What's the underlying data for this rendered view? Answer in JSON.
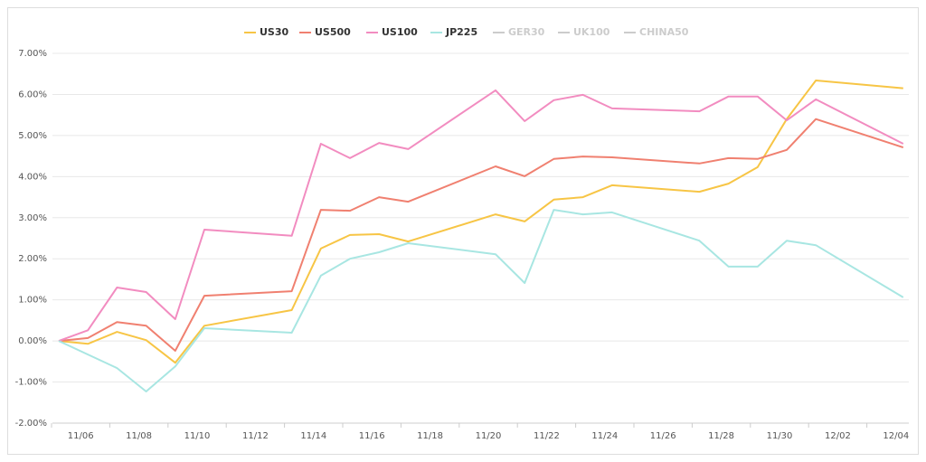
{
  "chart_data": {
    "type": "line",
    "x": [
      "11/05",
      "11/06",
      "11/07",
      "11/08",
      "11/09",
      "11/10",
      "11/13",
      "11/14",
      "11/15",
      "11/16",
      "11/17",
      "11/20",
      "11/21",
      "11/22",
      "11/23",
      "11/24",
      "11/27",
      "11/28",
      "11/29",
      "11/30",
      "12/01",
      "12/04"
    ],
    "series": [
      {
        "name": "US30",
        "color": "#f7c545",
        "visible": true,
        "values": [
          0,
          -0.07,
          0.22,
          0.02,
          -0.53,
          0.37,
          0.75,
          2.25,
          2.58,
          2.6,
          2.42,
          3.08,
          2.91,
          3.44,
          3.5,
          3.79,
          3.63,
          3.83,
          4.23,
          5.4,
          6.34,
          6.15
        ]
      },
      {
        "name": "US500",
        "color": "#f08070",
        "visible": true,
        "values": [
          0,
          0.07,
          0.46,
          0.37,
          -0.24,
          1.1,
          1.21,
          3.19,
          3.17,
          3.5,
          3.39,
          4.25,
          4.01,
          4.43,
          4.49,
          4.47,
          4.32,
          4.45,
          4.43,
          4.65,
          5.4,
          4.71
        ]
      },
      {
        "name": "US100",
        "color": "#f28cc0",
        "visible": true,
        "values": [
          0,
          0.26,
          1.3,
          1.19,
          0.53,
          2.71,
          2.56,
          4.8,
          4.45,
          4.82,
          4.67,
          6.1,
          5.35,
          5.86,
          5.99,
          5.66,
          5.59,
          5.95,
          5.95,
          5.37,
          5.88,
          4.8
        ]
      },
      {
        "name": "JP225",
        "color": "#a8e6e2",
        "visible": true,
        "values": [
          0,
          -0.33,
          -0.66,
          -1.23,
          -0.62,
          0.31,
          0.2,
          1.59,
          2.0,
          2.16,
          2.38,
          2.11,
          1.41,
          3.19,
          3.08,
          3.13,
          2.44,
          1.81,
          1.81,
          2.44,
          2.33,
          1.06
        ]
      },
      {
        "name": "GER30",
        "color": "#cccccc",
        "visible": false
      },
      {
        "name": "UK100",
        "color": "#cccccc",
        "visible": false
      },
      {
        "name": "CHINA50",
        "color": "#cccccc",
        "visible": false
      }
    ],
    "xticks": [
      "11/06",
      "11/08",
      "11/10",
      "11/12",
      "11/14",
      "11/16",
      "11/18",
      "11/20",
      "11/22",
      "11/24",
      "11/26",
      "11/28",
      "11/30",
      "12/02",
      "12/04"
    ],
    "ylim": [
      -2,
      7
    ],
    "yticks": [
      {
        "value": -2,
        "label": "-2.00%"
      },
      {
        "value": -1,
        "label": "-1.00%"
      },
      {
        "value": 0,
        "label": "0.00%"
      },
      {
        "value": 1,
        "label": "1.00%"
      },
      {
        "value": 2,
        "label": "2.00%"
      },
      {
        "value": 3,
        "label": "3.00%"
      },
      {
        "value": 4,
        "label": "4.00%"
      },
      {
        "value": 5,
        "label": "5.00%"
      },
      {
        "value": 6,
        "label": "6.00%"
      },
      {
        "value": 7,
        "label": "7.00%"
      }
    ],
    "grid": true,
    "legend": "top"
  }
}
